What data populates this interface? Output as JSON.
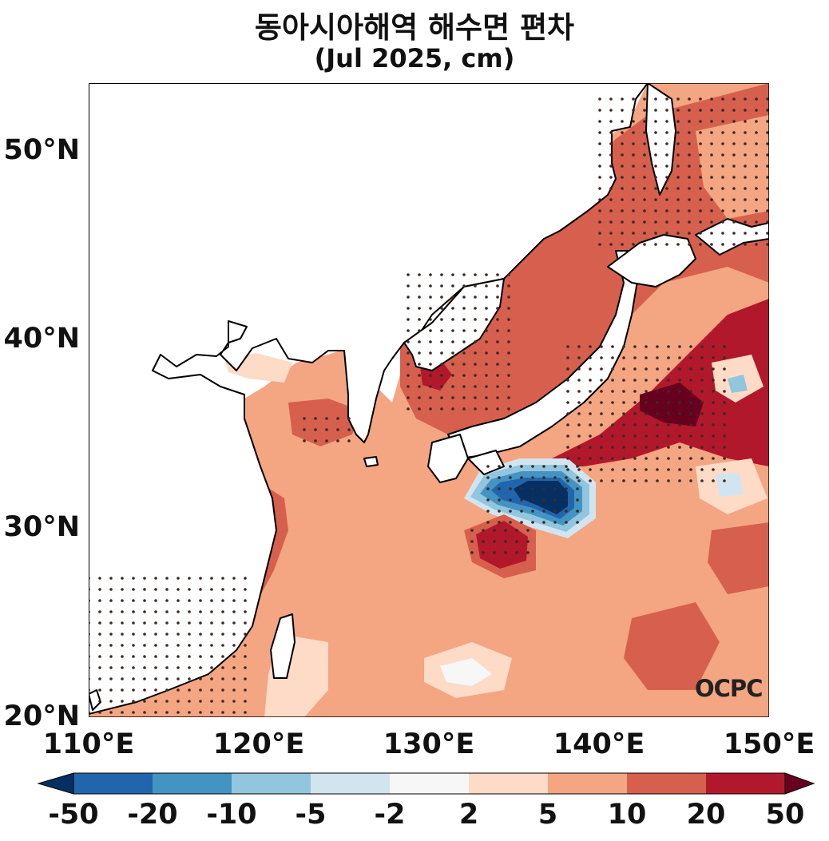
{
  "title_line1": "동아시아해역 해수면 편차",
  "title_line2": "(Jul 2025, cm)",
  "map": {
    "lon_range": [
      110,
      150
    ],
    "lat_range": [
      20,
      53.5
    ],
    "lat_labels": [
      "50°N",
      "40°N",
      "30°N",
      "20°N"
    ],
    "lon_labels": [
      "110°E",
      "120°E",
      "130°E",
      "140°E",
      "150°E"
    ],
    "watermark": "OCPC",
    "variable": "sea level anomaly (cm)",
    "stippling": "significant anomalies"
  },
  "colorbar": {
    "labels": [
      "-50",
      "-20",
      "-10",
      "-5",
      "-2",
      "2",
      "5",
      "10",
      "20",
      "50"
    ],
    "colors": [
      "#053061",
      "#2166ac",
      "#4393c3",
      "#92c5de",
      "#d1e5f0",
      "#f7f7f7",
      "#fddbc7",
      "#f4a582",
      "#d6604d",
      "#b2182b",
      "#67001f"
    ],
    "extend": "both"
  }
}
